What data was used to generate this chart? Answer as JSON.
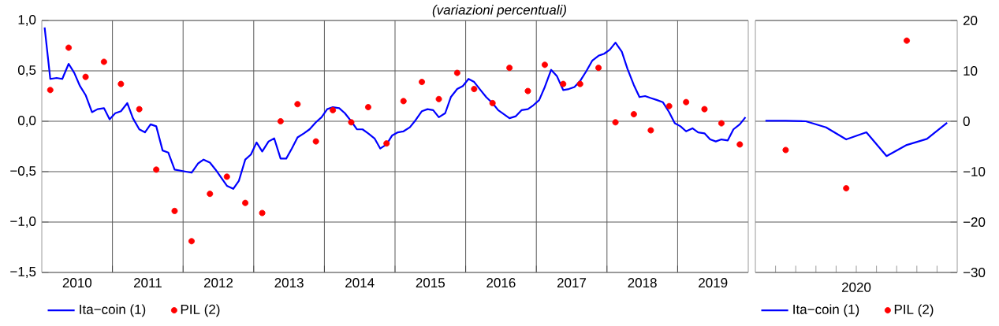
{
  "chart_data": [
    {
      "type": "line",
      "subtitle": "(variazioni percentuali)",
      "xlim": [
        "2010-01-01",
        "2020-01-01"
      ],
      "xticks": [
        {
          "value": "2010-07-01",
          "label": "2010"
        },
        {
          "value": "2011-07-01",
          "label": "2011"
        },
        {
          "value": "2012-07-01",
          "label": "2012"
        },
        {
          "value": "2013-07-01",
          "label": "2013"
        },
        {
          "value": "2014-07-01",
          "label": "2014"
        },
        {
          "value": "2015-07-01",
          "label": "2015"
        },
        {
          "value": "2016-07-01",
          "label": "2016"
        },
        {
          "value": "2017-07-01",
          "label": "2017"
        },
        {
          "value": "2018-07-01",
          "label": "2018"
        },
        {
          "value": "2019-07-01",
          "label": "2019"
        },
        {
          "value": "2011-01-01",
          "label": null
        },
        {
          "value": "2012-01-01",
          "label": null
        },
        {
          "value": "2013-01-01",
          "label": null
        },
        {
          "value": "2014-01-01",
          "label": null
        },
        {
          "value": "2015-01-01",
          "label": null
        },
        {
          "value": "2016-01-01",
          "label": null
        },
        {
          "value": "2017-01-01",
          "label": null
        },
        {
          "value": "2018-01-01",
          "label": null
        },
        {
          "value": "2019-01-01",
          "label": null
        }
      ],
      "ylim": [
        -1.5,
        1.0
      ],
      "yticks": [
        {
          "value": -1.5,
          "label": "−1,5"
        },
        {
          "value": -1.0,
          "label": "−1,0"
        },
        {
          "value": -0.5,
          "label": "−0,5"
        },
        {
          "value": 0,
          "label": "0,0"
        },
        {
          "value": 0.5,
          "label": "0,5"
        },
        {
          "value": 1.0,
          "label": "1,0"
        }
      ],
      "grid": true,
      "legend": "bottom left",
      "series": [
        {
          "name": "Ita−coin (1)",
          "color": "#0000ff",
          "x": [
            "2010-01",
            "2010-02",
            "2010-03",
            "2010-04",
            "2010-05",
            "2010-06",
            "2010-07",
            "2010-08",
            "2010-09",
            "2010-10",
            "2010-11",
            "2010-12",
            "2011-01",
            "2011-02",
            "2011-03",
            "2011-04",
            "2011-05",
            "2011-06",
            "2011-07",
            "2011-08",
            "2011-09",
            "2011-10",
            "2011-11",
            "2011-12",
            "2012-01",
            "2012-02",
            "2012-03",
            "2012-04",
            "2012-05",
            "2012-06",
            "2012-07",
            "2012-08",
            "2012-09",
            "2012-10",
            "2012-11",
            "2012-12",
            "2013-01",
            "2013-02",
            "2013-03",
            "2013-04",
            "2013-05",
            "2013-06",
            "2013-07",
            "2013-08",
            "2013-09",
            "2013-10",
            "2013-11",
            "2013-12",
            "2014-01",
            "2014-02",
            "2014-03",
            "2014-04",
            "2014-05",
            "2014-06",
            "2014-07",
            "2014-08",
            "2014-09",
            "2014-10",
            "2014-11",
            "2014-12",
            "2015-01",
            "2015-02",
            "2015-03",
            "2015-04",
            "2015-05",
            "2015-06",
            "2015-07",
            "2015-08",
            "2015-09",
            "2015-10",
            "2015-11",
            "2015-12",
            "2016-01",
            "2016-02",
            "2016-03",
            "2016-04",
            "2016-05",
            "2016-06",
            "2016-07",
            "2016-08",
            "2016-09",
            "2016-10",
            "2016-11",
            "2016-12",
            "2017-01",
            "2017-02",
            "2017-03",
            "2017-04",
            "2017-05",
            "2017-06",
            "2017-07",
            "2017-08",
            "2017-09",
            "2017-10",
            "2017-11",
            "2017-12",
            "2018-01",
            "2018-02",
            "2018-03",
            "2018-04",
            "2018-05",
            "2018-06",
            "2018-07",
            "2018-08",
            "2018-09",
            "2018-10",
            "2018-11",
            "2018-12",
            "2019-01",
            "2019-02",
            "2019-03",
            "2019-04",
            "2019-05",
            "2019-06",
            "2019-07",
            "2019-08",
            "2019-09",
            "2019-10",
            "2019-11",
            "2019-12"
          ],
          "values": [
            0.93,
            0.42,
            0.43,
            0.42,
            0.57,
            0.48,
            0.35,
            0.26,
            0.09,
            0.12,
            0.13,
            0.02,
            0.08,
            0.1,
            0.18,
            0.03,
            -0.08,
            -0.11,
            -0.03,
            -0.05,
            -0.29,
            -0.31,
            -0.48,
            -0.49,
            -0.5,
            -0.51,
            -0.42,
            -0.38,
            -0.41,
            -0.48,
            -0.56,
            -0.64,
            -0.67,
            -0.59,
            -0.38,
            -0.33,
            -0.21,
            -0.3,
            -0.2,
            -0.17,
            -0.37,
            -0.37,
            -0.27,
            -0.16,
            -0.12,
            -0.08,
            -0.01,
            0.04,
            0.12,
            0.14,
            0.13,
            0.08,
            0.0,
            -0.08,
            -0.08,
            -0.12,
            -0.17,
            -0.27,
            -0.23,
            -0.14,
            -0.11,
            -0.1,
            -0.06,
            0.01,
            0.1,
            0.12,
            0.11,
            0.04,
            0.08,
            0.24,
            0.32,
            0.35,
            0.42,
            0.39,
            0.31,
            0.24,
            0.18,
            0.11,
            0.07,
            0.03,
            0.05,
            0.11,
            0.12,
            0.16,
            0.21,
            0.34,
            0.51,
            0.45,
            0.31,
            0.32,
            0.34,
            0.4,
            0.5,
            0.6,
            0.65,
            0.67,
            0.71,
            0.78,
            0.69,
            0.52,
            0.36,
            0.24,
            0.25,
            0.23,
            0.21,
            0.19,
            0.09,
            -0.02,
            -0.05,
            -0.1,
            -0.07,
            -0.11,
            -0.12,
            -0.18,
            -0.2,
            -0.18,
            -0.19,
            -0.08,
            -0.03,
            0.04
          ]
        },
        {
          "name": "PIL (2)",
          "type": "scatter",
          "marker": "circle",
          "color": "#ff0000",
          "x": [
            "2010-02",
            "2010-05",
            "2010-08",
            "2010-11",
            "2011-02",
            "2011-05",
            "2011-08",
            "2011-11",
            "2012-02",
            "2012-05",
            "2012-08",
            "2012-11",
            "2013-02",
            "2013-05",
            "2013-08",
            "2013-11",
            "2014-02",
            "2014-05",
            "2014-08",
            "2014-11",
            "2015-02",
            "2015-05",
            "2015-08",
            "2015-11",
            "2016-02",
            "2016-05",
            "2016-08",
            "2016-11",
            "2017-02",
            "2017-05",
            "2017-08",
            "2017-11",
            "2018-02",
            "2018-05",
            "2018-08",
            "2018-11",
            "2019-02",
            "2019-05",
            "2019-08",
            "2019-11"
          ],
          "values": [
            0.31,
            0.73,
            0.44,
            0.59,
            0.37,
            0.12,
            -0.48,
            -0.89,
            -1.19,
            -0.72,
            -0.55,
            -0.81,
            -0.91,
            0.0,
            0.17,
            -0.2,
            0.11,
            -0.01,
            0.14,
            -0.22,
            0.2,
            0.39,
            0.22,
            0.48,
            0.32,
            0.18,
            0.53,
            0.3,
            0.56,
            0.37,
            0.37,
            0.53,
            -0.01,
            0.07,
            -0.09,
            0.15,
            0.19,
            0.12,
            -0.02,
            -0.23
          ]
        }
      ]
    },
    {
      "type": "line",
      "xlabel": "2020",
      "categories": [
        null,
        null,
        null,
        null,
        null,
        null,
        null,
        null,
        null,
        null
      ],
      "ylim": [
        -30,
        20
      ],
      "yticks": [
        {
          "value": -30,
          "label": "−30"
        },
        {
          "value": -20,
          "label": "−20"
        },
        {
          "value": -10,
          "label": "−10"
        },
        0,
        10,
        20
      ],
      "grid": "y",
      "legend": "bottom left",
      "series": [
        {
          "name": "Ita−coin (1)",
          "color": "#0000ff",
          "values": [
            0.1,
            0.1,
            0.0,
            -1.2,
            -3.6,
            -2.2,
            -6.9,
            -4.7,
            -3.5,
            -0.3
          ]
        },
        {
          "name": "PIL (2)",
          "type": "scatter",
          "marker": "circle",
          "color": "#ff0000",
          "values": [
            null,
            -5.7,
            null,
            null,
            -13.3,
            null,
            null,
            16.0,
            null,
            null
          ]
        }
      ]
    }
  ]
}
